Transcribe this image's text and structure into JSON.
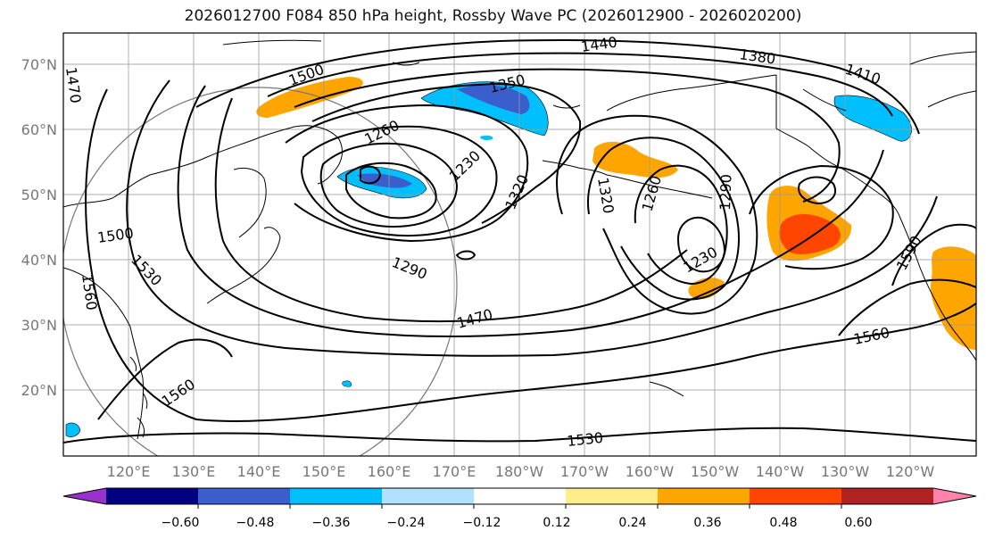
{
  "title": "2026012700 F084 850 hPa height, Rossby Wave PC (2026012900 - 2026020200)",
  "map": {
    "lat_ticks": [
      "70°N",
      "60°N",
      "50°N",
      "40°N",
      "30°N",
      "20°N"
    ],
    "lon_ticks": [
      "120°E",
      "130°E",
      "140°E",
      "150°E",
      "160°E",
      "170°E",
      "180°W",
      "170°W",
      "160°W",
      "150°W",
      "140°W",
      "130°W",
      "120°W"
    ],
    "contour_labels": [
      "1440",
      "1380",
      "1410",
      "1500",
      "1350",
      "1260",
      "1230",
      "1320",
      "1320",
      "1260",
      "1290",
      "1470",
      "1500",
      "1530",
      "1560",
      "1290",
      "1470",
      "1230",
      "1590",
      "1560",
      "1560",
      "1530"
    ]
  },
  "colorbar": {
    "tick_labels": [
      "−0.60",
      "−0.48",
      "−0.36",
      "−0.24",
      "−0.12",
      "0.12",
      "0.24",
      "0.36",
      "0.48",
      "0.60"
    ],
    "colors": [
      "#9932cc",
      "#000080",
      "#3a5fcd",
      "#00bfff",
      "#b0e2ff",
      "#ffffff",
      "#ffec8b",
      "#ffa500",
      "#ff4500",
      "#b22222",
      "#ff82ab"
    ]
  }
}
